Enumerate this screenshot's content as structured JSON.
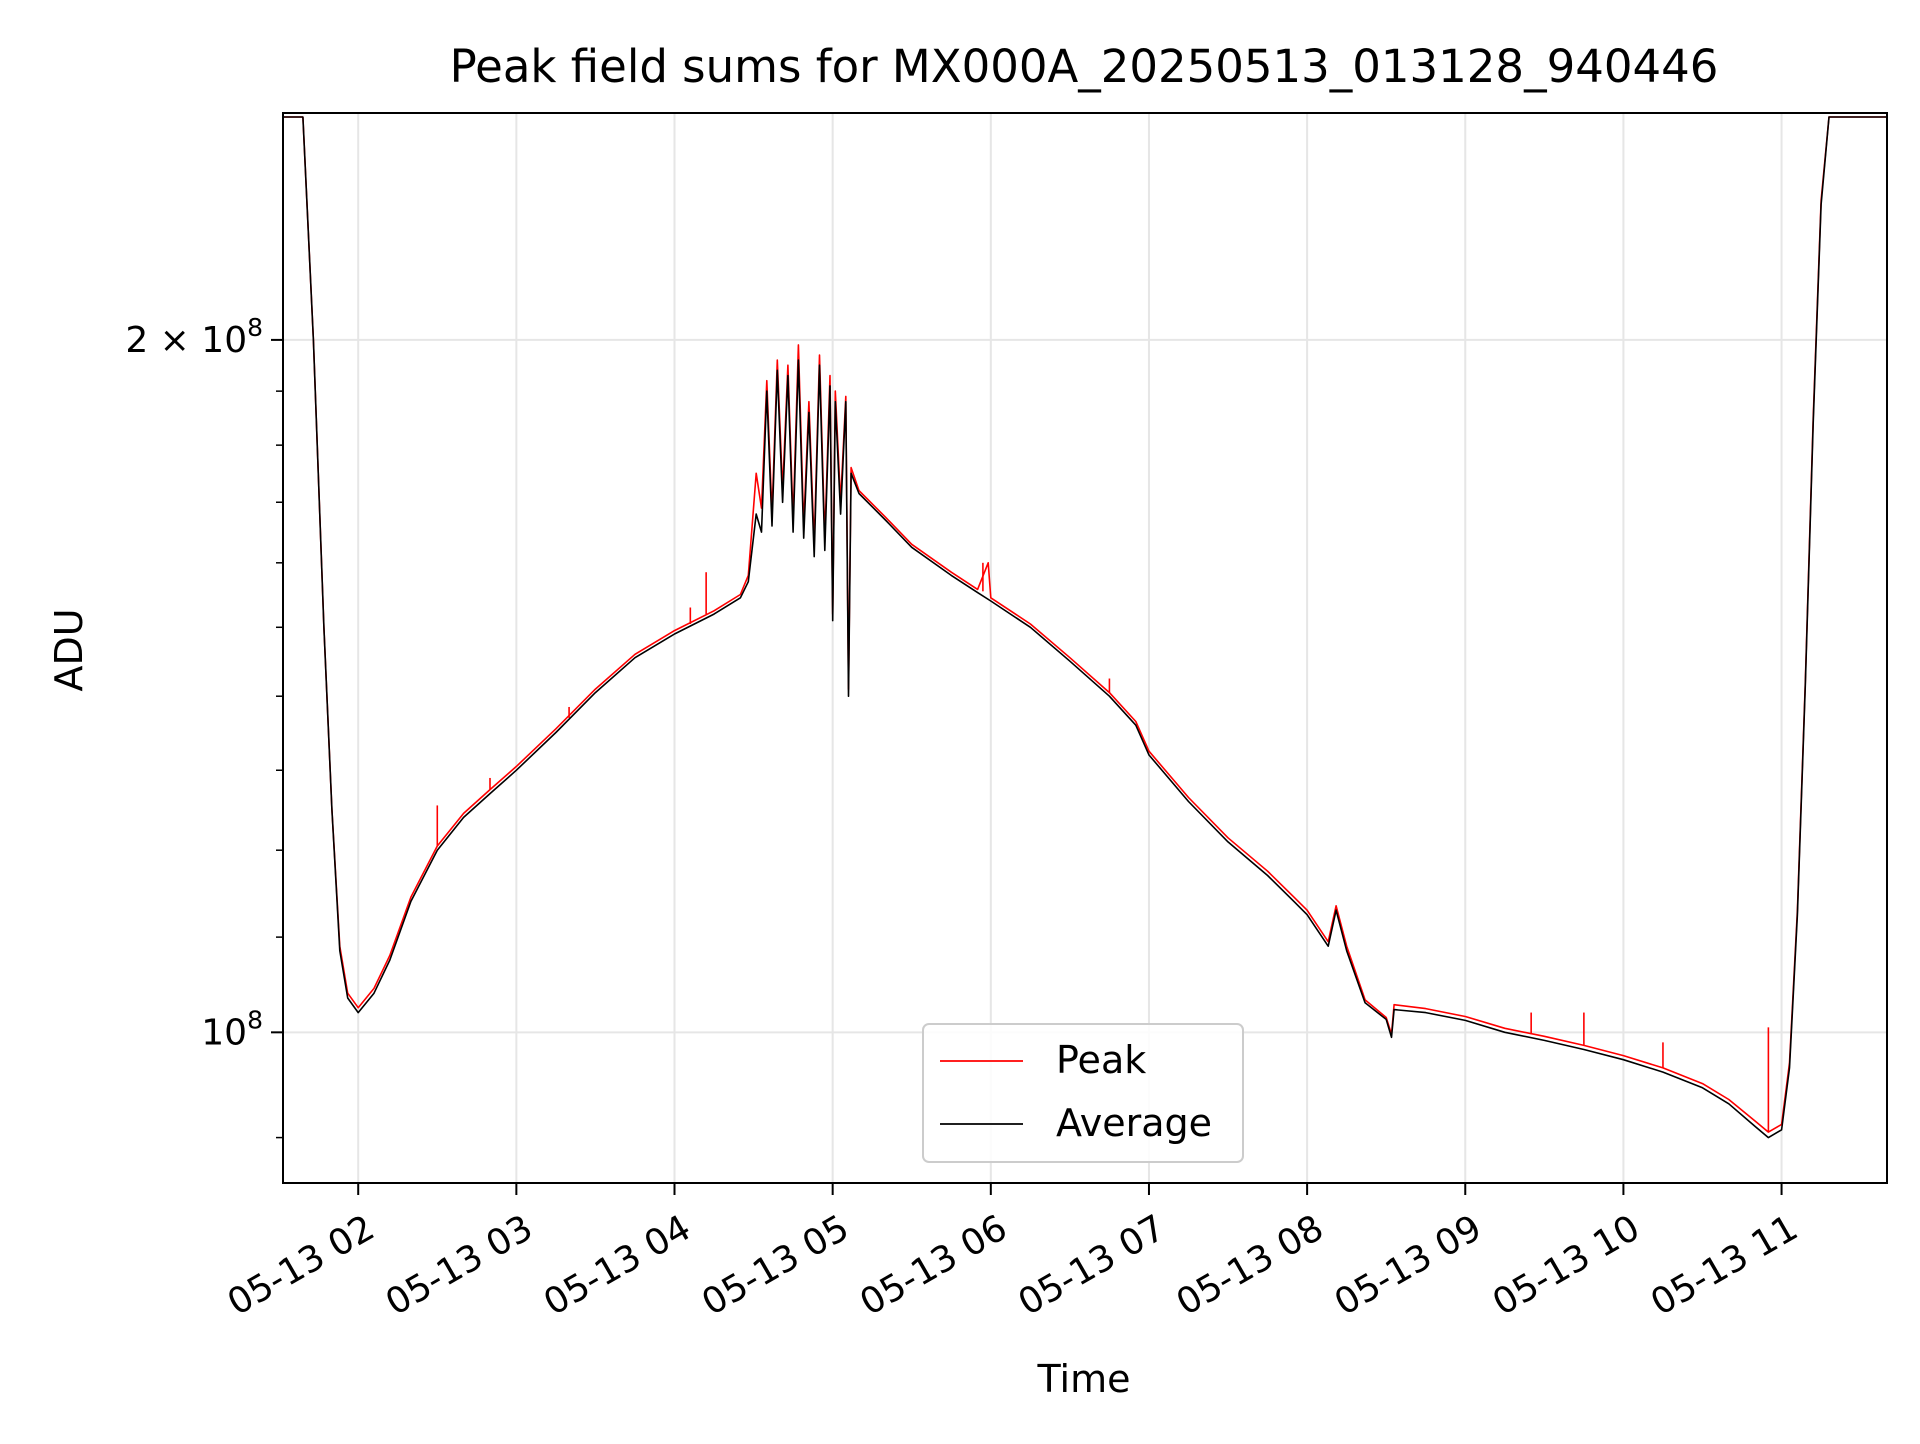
{
  "chart_data": {
    "type": "line",
    "title": "Peak field sums for MX000A_20250513_013128_940446",
    "xlabel": "Time",
    "ylabel": "ADU",
    "x_tick_labels": [
      "05-13 02",
      "05-13 03",
      "05-13 04",
      "05-13 05",
      "05-13 06",
      "05-13 07",
      "05-13 08",
      "05-13 09",
      "05-13 10",
      "05-13 11"
    ],
    "y_tick_labels": [
      {
        "value": 100000000,
        "base": "10",
        "exponent": "8",
        "prefix": ""
      },
      {
        "value": 200000000,
        "base": "10",
        "exponent": "8",
        "prefix": "2 × "
      }
    ],
    "xlim": [
      "2025-05-13T01:31:28",
      "2025-05-13T11:40:00"
    ],
    "ylim": [
      86000000,
      251000000
    ],
    "y_scale": "log",
    "grid": true,
    "legend_position": "bottom-center",
    "series": [
      {
        "name": "Peak",
        "color": "#ff0000",
        "points": [
          [
            "2025-05-13T01:31:28",
            250000000
          ],
          [
            "2025-05-13T01:39:00",
            250000000
          ],
          [
            "2025-05-13T01:43:00",
            200000000
          ],
          [
            "2025-05-13T01:47:00",
            150000000
          ],
          [
            "2025-05-13T01:50:00",
            125000000
          ],
          [
            "2025-05-13T01:53:00",
            109000000
          ],
          [
            "2025-05-13T01:56:00",
            104000000
          ],
          [
            "2025-05-13T02:00:00",
            102500000
          ],
          [
            "2025-05-13T02:06:00",
            104500000
          ],
          [
            "2025-05-13T02:12:00",
            108000000
          ],
          [
            "2025-05-13T02:20:00",
            114500000
          ],
          [
            "2025-05-13T02:30:00",
            120500000
          ],
          [
            "2025-05-13T02:40:00",
            124500000
          ],
          [
            "2025-05-13T02:50:00",
            127500000
          ],
          [
            "2025-05-13T03:00:00",
            130500000
          ],
          [
            "2025-05-13T03:15:00",
            135500000
          ],
          [
            "2025-05-13T03:30:00",
            141000000
          ],
          [
            "2025-05-13T03:45:00",
            146000000
          ],
          [
            "2025-05-13T04:00:00",
            149500000
          ],
          [
            "2025-05-13T04:15:00",
            152500000
          ],
          [
            "2025-05-13T04:25:00",
            155000000
          ],
          [
            "2025-05-13T04:28:00",
            158000000
          ],
          [
            "2025-05-13T04:31:00",
            175000000
          ],
          [
            "2025-05-13T04:33:00",
            169000000
          ],
          [
            "2025-05-13T04:35:00",
            192000000
          ],
          [
            "2025-05-13T04:37:00",
            168000000
          ],
          [
            "2025-05-13T04:39:00",
            196000000
          ],
          [
            "2025-05-13T04:41:00",
            172000000
          ],
          [
            "2025-05-13T04:43:00",
            195000000
          ],
          [
            "2025-05-13T04:45:00",
            167000000
          ],
          [
            "2025-05-13T04:47:00",
            199000000
          ],
          [
            "2025-05-13T04:49:00",
            166000000
          ],
          [
            "2025-05-13T04:51:00",
            188000000
          ],
          [
            "2025-05-13T04:53:00",
            163000000
          ],
          [
            "2025-05-13T04:55:00",
            197000000
          ],
          [
            "2025-05-13T04:57:00",
            164000000
          ],
          [
            "2025-05-13T04:59:00",
            193000000
          ],
          [
            "2025-05-13T05:00:00",
            152000000
          ],
          [
            "2025-05-13T05:01:00",
            190000000
          ],
          [
            "2025-05-13T05:03:00",
            170000000
          ],
          [
            "2025-05-13T05:05:00",
            189000000
          ],
          [
            "2025-05-13T05:06:00",
            141000000
          ],
          [
            "2025-05-13T05:07:00",
            176000000
          ],
          [
            "2025-05-13T05:10:00",
            172000000
          ],
          [
            "2025-05-13T05:20:00",
            167500000
          ],
          [
            "2025-05-13T05:30:00",
            163000000
          ],
          [
            "2025-05-13T05:45:00",
            158500000
          ],
          [
            "2025-05-13T05:55:00",
            155800000
          ],
          [
            "2025-05-13T05:59:00",
            160000000
          ],
          [
            "2025-05-13T06:00:00",
            154500000
          ],
          [
            "2025-05-13T06:15:00",
            150500000
          ],
          [
            "2025-05-13T06:30:00",
            145500000
          ],
          [
            "2025-05-13T06:45:00",
            140500000
          ],
          [
            "2025-05-13T06:55:00",
            136500000
          ],
          [
            "2025-05-13T07:00:00",
            132500000
          ],
          [
            "2025-05-13T07:15:00",
            126500000
          ],
          [
            "2025-05-13T07:30:00",
            121500000
          ],
          [
            "2025-05-13T07:45:00",
            117500000
          ],
          [
            "2025-05-13T07:55:00",
            114500000
          ],
          [
            "2025-05-13T08:00:00",
            113000000
          ],
          [
            "2025-05-13T08:08:00",
            109500000
          ],
          [
            "2025-05-13T08:11:00",
            113500000
          ],
          [
            "2025-05-13T08:15:00",
            109000000
          ],
          [
            "2025-05-13T08:22:00",
            103300000
          ],
          [
            "2025-05-13T08:30:00",
            101500000
          ],
          [
            "2025-05-13T08:32:00",
            99800000
          ],
          [
            "2025-05-13T08:33:00",
            102800000
          ],
          [
            "2025-05-13T08:45:00",
            102400000
          ],
          [
            "2025-05-13T09:00:00",
            101600000
          ],
          [
            "2025-05-13T09:15:00",
            100400000
          ],
          [
            "2025-05-13T09:30:00",
            99600000
          ],
          [
            "2025-05-13T09:45:00",
            98700000
          ],
          [
            "2025-05-13T10:00:00",
            97700000
          ],
          [
            "2025-05-13T10:15:00",
            96500000
          ],
          [
            "2025-05-13T10:30:00",
            95000000
          ],
          [
            "2025-05-13T10:40:00",
            93500000
          ],
          [
            "2025-05-13T10:50:00",
            91500000
          ],
          [
            "2025-05-13T10:55:00",
            90500000
          ],
          [
            "2025-05-13T11:00:00",
            91200000
          ],
          [
            "2025-05-13T11:03:00",
            97000000
          ],
          [
            "2025-05-13T11:06:00",
            113000000
          ],
          [
            "2025-05-13T11:09:00",
            142000000
          ],
          [
            "2025-05-13T11:12:00",
            185000000
          ],
          [
            "2025-05-13T11:15:00",
            230000000
          ],
          [
            "2025-05-13T11:18:00",
            250000000
          ],
          [
            "2025-05-13T11:40:00",
            250000000
          ]
        ]
      },
      {
        "name": "Average",
        "color": "#000000",
        "points": [
          [
            "2025-05-13T01:31:28",
            250000000
          ],
          [
            "2025-05-13T01:39:00",
            250000000
          ],
          [
            "2025-05-13T01:43:00",
            200000000
          ],
          [
            "2025-05-13T01:47:00",
            150000000
          ],
          [
            "2025-05-13T01:50:00",
            125000000
          ],
          [
            "2025-05-13T01:53:00",
            108500000
          ],
          [
            "2025-05-13T01:56:00",
            103500000
          ],
          [
            "2025-05-13T02:00:00",
            102000000
          ],
          [
            "2025-05-13T02:06:00",
            104000000
          ],
          [
            "2025-05-13T02:12:00",
            107500000
          ],
          [
            "2025-05-13T02:20:00",
            114000000
          ],
          [
            "2025-05-13T02:30:00",
            120000000
          ],
          [
            "2025-05-13T02:40:00",
            124000000
          ],
          [
            "2025-05-13T02:50:00",
            127000000
          ],
          [
            "2025-05-13T03:00:00",
            130000000
          ],
          [
            "2025-05-13T03:15:00",
            135000000
          ],
          [
            "2025-05-13T03:30:00",
            140500000
          ],
          [
            "2025-05-13T03:45:00",
            145500000
          ],
          [
            "2025-05-13T04:00:00",
            149000000
          ],
          [
            "2025-05-13T04:15:00",
            152000000
          ],
          [
            "2025-05-13T04:25:00",
            154500000
          ],
          [
            "2025-05-13T04:28:00",
            157000000
          ],
          [
            "2025-05-13T04:31:00",
            168000000
          ],
          [
            "2025-05-13T04:33:00",
            165000000
          ],
          [
            "2025-05-13T04:35:00",
            190000000
          ],
          [
            "2025-05-13T04:37:00",
            166000000
          ],
          [
            "2025-05-13T04:39:00",
            194000000
          ],
          [
            "2025-05-13T04:41:00",
            170000000
          ],
          [
            "2025-05-13T04:43:00",
            193000000
          ],
          [
            "2025-05-13T04:45:00",
            165000000
          ],
          [
            "2025-05-13T04:47:00",
            196000000
          ],
          [
            "2025-05-13T04:49:00",
            164000000
          ],
          [
            "2025-05-13T04:51:00",
            186000000
          ],
          [
            "2025-05-13T04:53:00",
            161000000
          ],
          [
            "2025-05-13T04:55:00",
            195000000
          ],
          [
            "2025-05-13T04:57:00",
            162000000
          ],
          [
            "2025-05-13T04:59:00",
            191000000
          ],
          [
            "2025-05-13T05:00:00",
            151000000
          ],
          [
            "2025-05-13T05:01:00",
            188000000
          ],
          [
            "2025-05-13T05:03:00",
            168000000
          ],
          [
            "2025-05-13T05:05:00",
            188000000
          ],
          [
            "2025-05-13T05:06:00",
            140000000
          ],
          [
            "2025-05-13T05:07:00",
            175000000
          ],
          [
            "2025-05-13T05:10:00",
            171500000
          ],
          [
            "2025-05-13T05:20:00",
            167000000
          ],
          [
            "2025-05-13T05:30:00",
            162500000
          ],
          [
            "2025-05-13T05:45:00",
            158000000
          ],
          [
            "2025-05-13T05:55:00",
            155300000
          ],
          [
            "2025-05-13T06:00:00",
            154000000
          ],
          [
            "2025-05-13T06:15:00",
            150000000
          ],
          [
            "2025-05-13T06:30:00",
            145000000
          ],
          [
            "2025-05-13T06:45:00",
            140000000
          ],
          [
            "2025-05-13T06:55:00",
            136000000
          ],
          [
            "2025-05-13T07:00:00",
            132000000
          ],
          [
            "2025-05-13T07:15:00",
            126000000
          ],
          [
            "2025-05-13T07:30:00",
            121000000
          ],
          [
            "2025-05-13T07:45:00",
            117000000
          ],
          [
            "2025-05-13T07:55:00",
            114000000
          ],
          [
            "2025-05-13T08:00:00",
            112500000
          ],
          [
            "2025-05-13T08:08:00",
            109000000
          ],
          [
            "2025-05-13T08:11:00",
            113000000
          ],
          [
            "2025-05-13T08:15:00",
            108500000
          ],
          [
            "2025-05-13T08:22:00",
            103000000
          ],
          [
            "2025-05-13T08:30:00",
            101300000
          ],
          [
            "2025-05-13T08:32:00",
            99500000
          ],
          [
            "2025-05-13T08:33:00",
            102300000
          ],
          [
            "2025-05-13T08:45:00",
            102000000
          ],
          [
            "2025-05-13T09:00:00",
            101200000
          ],
          [
            "2025-05-13T09:15:00",
            100000000
          ],
          [
            "2025-05-13T09:30:00",
            99200000
          ],
          [
            "2025-05-13T09:45:00",
            98300000
          ],
          [
            "2025-05-13T10:00:00",
            97300000
          ],
          [
            "2025-05-13T10:15:00",
            96100000
          ],
          [
            "2025-05-13T10:30:00",
            94600000
          ],
          [
            "2025-05-13T10:40:00",
            93100000
          ],
          [
            "2025-05-13T10:50:00",
            91000000
          ],
          [
            "2025-05-13T10:55:00",
            90000000
          ],
          [
            "2025-05-13T11:00:00",
            90700000
          ],
          [
            "2025-05-13T11:03:00",
            96500000
          ],
          [
            "2025-05-13T11:06:00",
            112500000
          ],
          [
            "2025-05-13T11:09:00",
            141500000
          ],
          [
            "2025-05-13T11:12:00",
            184000000
          ],
          [
            "2025-05-13T11:15:00",
            229000000
          ],
          [
            "2025-05-13T11:18:00",
            250000000
          ],
          [
            "2025-05-13T11:40:00",
            250000000
          ]
        ]
      }
    ],
    "spikes": {
      "series": "Peak",
      "points": [
        [
          "2025-05-13T02:30:00",
          120500000,
          125500000
        ],
        [
          "2025-05-13T02:50:00",
          127500000,
          129000000
        ],
        [
          "2025-05-13T03:20:00",
          137000000,
          138500000
        ],
        [
          "2025-05-13T04:06:00",
          150500000,
          153000000
        ],
        [
          "2025-05-13T04:12:00",
          152000000,
          158500000
        ],
        [
          "2025-05-13T05:57:00",
          155500000,
          160000000
        ],
        [
          "2025-05-13T06:45:00",
          140500000,
          142500000
        ],
        [
          "2025-05-13T09:25:00",
          99800000,
          102000000
        ],
        [
          "2025-05-13T09:45:00",
          98700000,
          102000000
        ],
        [
          "2025-05-13T10:15:00",
          96500000,
          99000000
        ],
        [
          "2025-05-13T10:55:00",
          90500000,
          100500000
        ]
      ]
    }
  }
}
